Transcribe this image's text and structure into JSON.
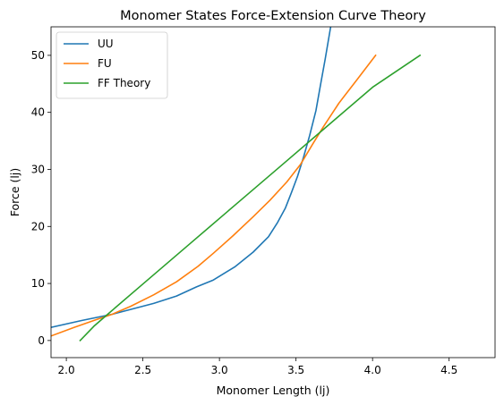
{
  "chart_data": {
    "type": "line",
    "title": "Monomer States Force-Extension Curve Theory",
    "xlabel": "Monomer Length (lj)",
    "ylabel": "Force (lj)",
    "xlim": [
      1.9,
      4.8
    ],
    "ylim": [
      -3,
      55
    ],
    "xticks": [
      2.0,
      2.5,
      3.0,
      3.5,
      4.0,
      4.5
    ],
    "xtick_labels": [
      "2.0",
      "2.5",
      "3.0",
      "3.5",
      "4.0",
      "4.5"
    ],
    "yticks": [
      0,
      10,
      20,
      30,
      40,
      50
    ],
    "ytick_labels": [
      "0",
      "10",
      "20",
      "30",
      "40",
      "50"
    ],
    "grid": false,
    "legend": "top-left",
    "series": [
      {
        "name": "UU",
        "color": "#1f77b4",
        "x": [
          1.9,
          2.1,
          2.3,
          2.57,
          2.72,
          2.85,
          2.96,
          3.1,
          3.22,
          3.32,
          3.38,
          3.43,
          3.47,
          3.51,
          3.55,
          3.59,
          3.63,
          3.66,
          3.69,
          3.72,
          3.745,
          3.765
        ],
        "y": [
          2.3,
          3.5,
          4.6,
          6.5,
          7.8,
          9.4,
          10.6,
          12.9,
          15.5,
          18.2,
          20.7,
          23.2,
          25.9,
          28.8,
          32.2,
          36.0,
          40.3,
          44.8,
          49.3,
          54.0,
          58.0,
          61.0
        ]
      },
      {
        "name": "FU",
        "color": "#ff7f0e",
        "x": [
          1.9,
          2.05,
          2.2,
          2.3,
          2.42,
          2.57,
          2.72,
          2.86,
          2.96,
          3.09,
          3.22,
          3.33,
          3.44,
          3.53,
          3.61,
          3.68,
          3.78,
          3.9,
          4.02
        ],
        "y": [
          0.8,
          2.3,
          3.7,
          4.6,
          6.0,
          8.0,
          10.3,
          13.0,
          15.3,
          18.4,
          21.7,
          24.6,
          27.8,
          30.9,
          34.5,
          37.5,
          41.6,
          45.8,
          50.0
        ]
      },
      {
        "name": "FF Theory",
        "color": "#2ca02c",
        "x": [
          2.09,
          2.18,
          2.27,
          2.5,
          2.8,
          3.1,
          3.4,
          3.7,
          4.0,
          4.31
        ],
        "y": [
          0.0,
          2.5,
          4.6,
          9.9,
          16.8,
          23.7,
          30.6,
          37.5,
          44.4,
          50.0
        ]
      }
    ]
  }
}
